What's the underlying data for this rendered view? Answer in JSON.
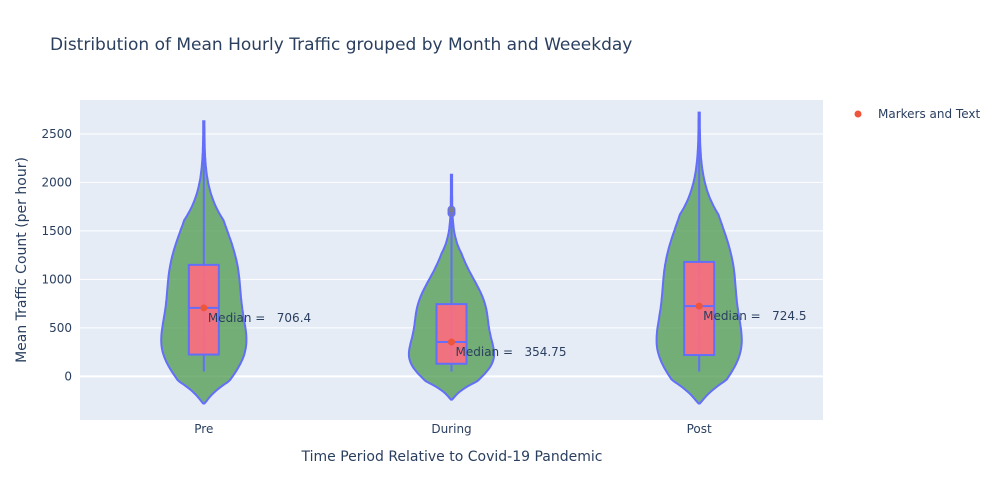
{
  "chart_data": {
    "type": "violin",
    "title": "Distribution of Mean Hourly Traffic grouped by Month and Weeekday",
    "xlabel": "Time Period Relative to Covid-19 Pandemic",
    "ylabel": "Mean Traffic Count (per hour)",
    "categories": [
      "Pre",
      "During",
      "Post"
    ],
    "ylim": [
      -450,
      2850
    ],
    "yticks": [
      0,
      500,
      1000,
      1500,
      2000,
      2500
    ],
    "grid": true,
    "legend_position": "top-right",
    "series": [
      {
        "name": "Markers and Text",
        "values": [
          706.4,
          354.75,
          724.5
        ]
      }
    ],
    "violins": [
      {
        "category": "Pre",
        "min": 50,
        "q1": 225,
        "median": 706.4,
        "q3": 1150,
        "max": 2630,
        "kde_min": -280,
        "kde_max": 2630
      },
      {
        "category": "During",
        "min": 50,
        "q1": 130,
        "median": 354.75,
        "q3": 745,
        "max": 1860,
        "outliers": [
          1680,
          1700,
          1720
        ],
        "kde_min": -240,
        "kde_max": 2080
      },
      {
        "category": "Post",
        "min": 50,
        "q1": 220,
        "median": 724.5,
        "q3": 1180,
        "max": 2720,
        "kde_min": -280,
        "kde_max": 2720
      }
    ],
    "annotations": [
      "Median =   706.4",
      "Median =   354.75",
      "Median =   724.5"
    ],
    "colors": {
      "violin_fill": "#4c9a4c",
      "violin_line": "#636efa",
      "box_fill": "#ff6b7f",
      "marker": "#ef553b",
      "plot_bg": "#e5ecf6",
      "grid": "#ffffff",
      "text": "#2a3f5f"
    }
  }
}
